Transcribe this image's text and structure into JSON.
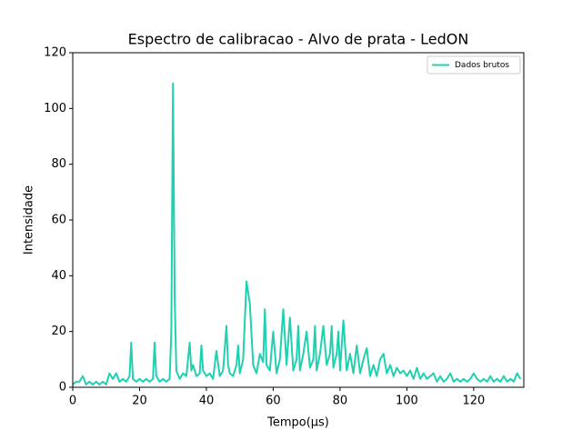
{
  "chart_data": {
    "type": "line",
    "title": "Espectro de calibracao - Alvo de prata - LedON",
    "xlabel": "Tempo(μs)",
    "ylabel": "Intensidade",
    "xlim": [
      0,
      135
    ],
    "ylim": [
      0,
      120
    ],
    "xticks": [
      0,
      20,
      40,
      60,
      80,
      100,
      120
    ],
    "yticks": [
      0,
      20,
      40,
      60,
      80,
      100,
      120
    ],
    "grid": false,
    "legend": "upper right",
    "x": [
      0,
      1,
      2,
      3,
      4,
      5,
      6,
      7,
      8,
      9,
      10,
      11,
      12,
      13,
      14,
      15,
      16,
      17,
      17.5,
      18,
      19,
      20,
      21,
      22,
      23,
      24,
      24.5,
      25,
      26,
      27,
      28,
      29,
      29.5,
      30,
      30.5,
      31,
      32,
      33,
      34,
      35,
      35.5,
      36,
      37,
      38,
      38.5,
      39,
      40,
      41,
      42,
      43,
      44,
      45,
      46,
      46.5,
      47,
      48,
      49,
      49.5,
      50,
      51,
      52,
      53,
      54,
      55,
      56,
      57,
      57.5,
      58,
      59,
      60,
      61,
      62,
      63,
      64,
      65,
      66,
      67,
      67.5,
      68,
      69,
      70,
      71,
      72,
      72.5,
      73,
      74,
      75,
      76,
      77,
      77.5,
      78,
      79,
      79.5,
      80,
      81,
      82,
      83,
      84,
      85,
      86,
      87,
      88,
      89,
      90,
      91,
      92,
      93,
      94,
      95,
      96,
      97,
      98,
      99,
      100,
      101,
      102,
      103,
      104,
      105,
      106,
      107,
      108,
      109,
      110,
      111,
      112,
      113,
      114,
      115,
      116,
      117,
      118,
      119,
      120,
      121,
      122,
      123,
      124,
      125,
      126,
      127,
      128,
      129,
      130,
      131,
      132,
      133,
      134
    ],
    "series": [
      {
        "name": "Dados brutos",
        "color": "#1fd1b0",
        "values": [
          1,
          2,
          2,
          4,
          1,
          2,
          1,
          2,
          1,
          2,
          1,
          5,
          3,
          5,
          2,
          3,
          2,
          4,
          16,
          3,
          2,
          3,
          2,
          3,
          2,
          3,
          16,
          4,
          2,
          3,
          2,
          3,
          20,
          109,
          33,
          6,
          3,
          5,
          4,
          16,
          6,
          8,
          4,
          5,
          15,
          6,
          4,
          5,
          3,
          13,
          4,
          6,
          22,
          8,
          5,
          4,
          8,
          15,
          5,
          10,
          38,
          30,
          8,
          5,
          12,
          9,
          28,
          8,
          6,
          20,
          5,
          10,
          28,
          8,
          25,
          6,
          10,
          22,
          6,
          12,
          20,
          7,
          10,
          22,
          6,
          12,
          22,
          8,
          12,
          22,
          7,
          12,
          20,
          6,
          24,
          6,
          12,
          5,
          15,
          5,
          10,
          14,
          4,
          8,
          4,
          10,
          12,
          5,
          8,
          4,
          7,
          5,
          6,
          4,
          6,
          3,
          7,
          3,
          5,
          3,
          4,
          5,
          2,
          4,
          2,
          3,
          5,
          2,
          3,
          2,
          3,
          2,
          3,
          5,
          3,
          2,
          3,
          2,
          4,
          2,
          3,
          2,
          4,
          2,
          3,
          2,
          5,
          3
        ]
      }
    ]
  }
}
